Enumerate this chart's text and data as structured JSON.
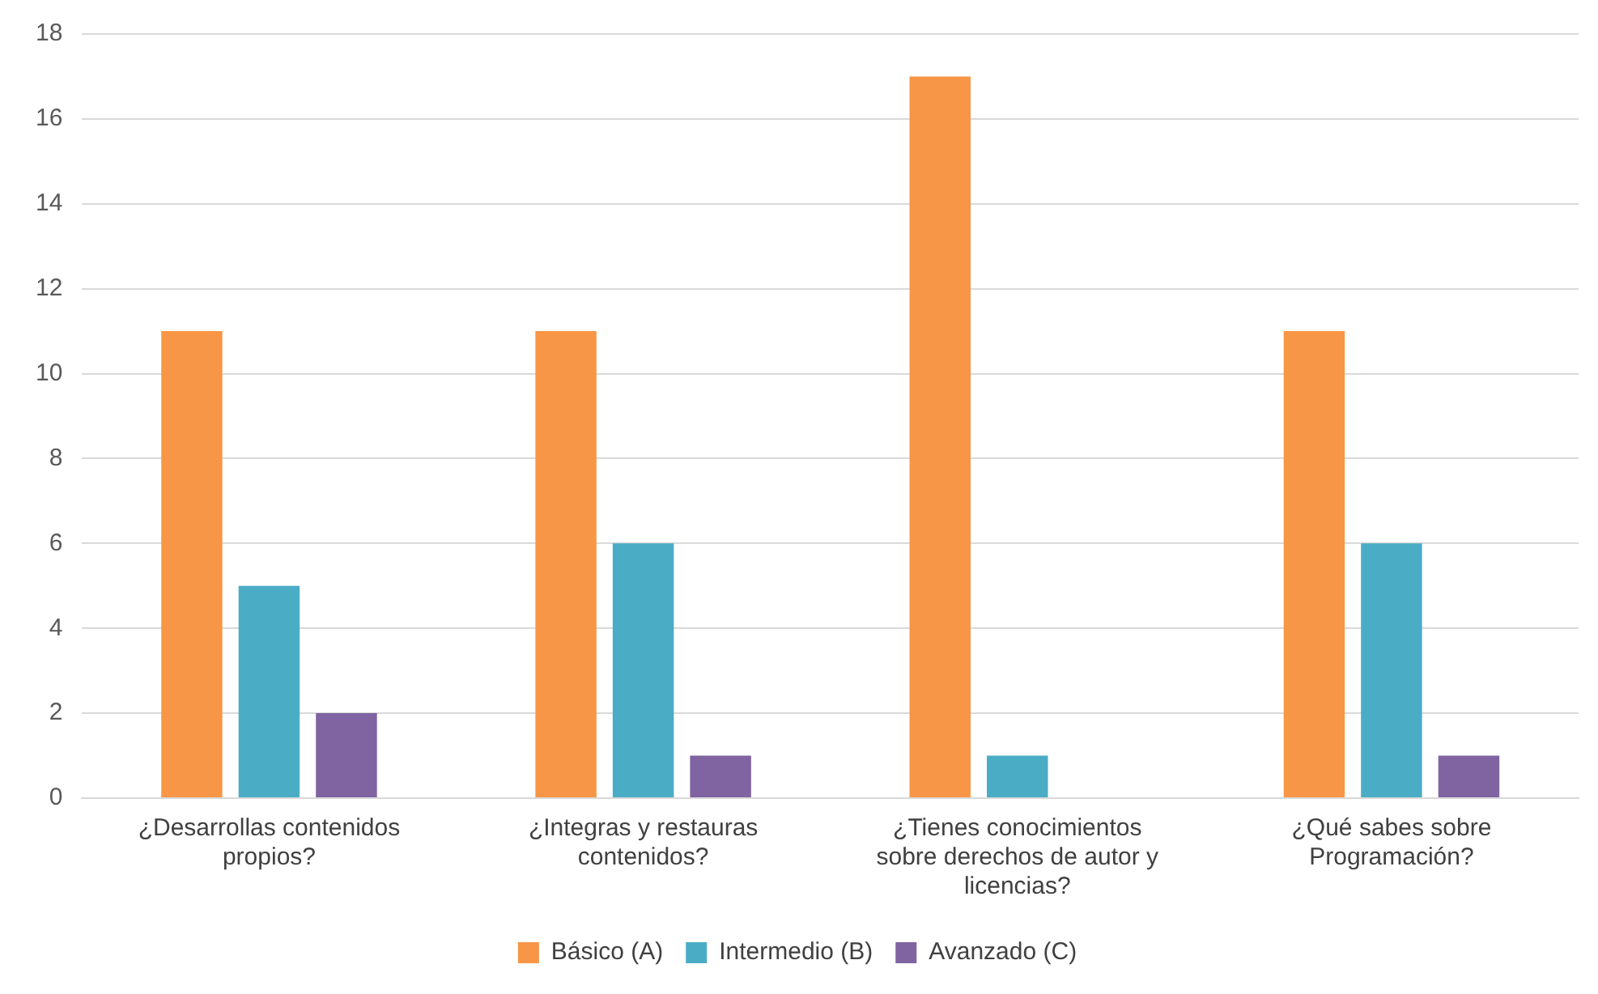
{
  "chart_data": {
    "type": "bar",
    "categories": [
      "¿Desarrollas contenidos propios?",
      "¿Integras y restauras contenidos?",
      "¿Tienes conocimientos sobre derechos de autor y licencias?",
      "¿Qué sabes sobre Programación?"
    ],
    "series": [
      {
        "name": "Básico (A)",
        "color": "#f79646",
        "values": [
          11,
          11,
          17,
          11
        ]
      },
      {
        "name": "Intermedio (B)",
        "color": "#4bacc6",
        "values": [
          5,
          6,
          1,
          6
        ]
      },
      {
        "name": "Avanzado (C)",
        "color": "#8064a2",
        "values": [
          2,
          1,
          0,
          1
        ]
      }
    ],
    "ylim": [
      0,
      18
    ],
    "yticks": [
      0,
      2,
      4,
      6,
      8,
      10,
      12,
      14,
      16,
      18
    ],
    "grid": "y",
    "legend": "bottom"
  }
}
